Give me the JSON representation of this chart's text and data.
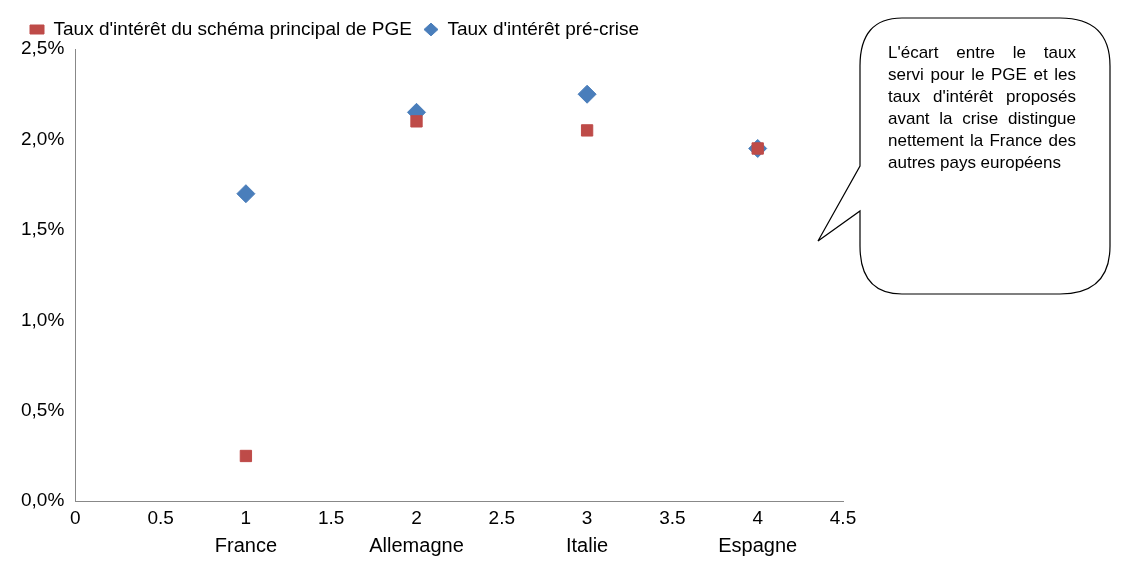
{
  "chart_data": {
    "type": "scatter",
    "x": [
      1,
      2,
      3,
      4
    ],
    "series": [
      {
        "name": "Taux d'intérêt pré-crise",
        "color": "#4a7ebb",
        "marker": "diamond",
        "values": [
          1.7,
          2.15,
          2.25,
          1.95
        ]
      },
      {
        "name": "Taux d'intérêt du schéma principal de PGE",
        "color": "#be4b48",
        "marker": "square",
        "values": [
          0.25,
          2.1,
          2.05,
          1.95
        ]
      }
    ],
    "xlim": [
      0,
      4.5
    ],
    "xticks": [
      0,
      0.5,
      1,
      1.5,
      2,
      2.5,
      3,
      3.5,
      4,
      4.5
    ],
    "ylim": [
      0,
      2.5
    ],
    "yticks": [
      {
        "value": 0,
        "label": "0,0%"
      },
      {
        "value": 0.5,
        "label": "0,5%"
      },
      {
        "value": 1,
        "label": "1,0%"
      },
      {
        "value": 1.5,
        "label": "1,5%"
      },
      {
        "value": 2,
        "label": "2,0%"
      },
      {
        "value": 2.5,
        "label": "2,5%"
      }
    ],
    "grid": false,
    "legend": "top left",
    "annotations": [
      "France",
      "Allemagne",
      "Italie",
      "Espagne",
      "L'écart entre le taux servi pour le PGE et les taux d'intérêt proposés avant la crise distingue nettement la France des autres pays européens"
    ]
  }
}
